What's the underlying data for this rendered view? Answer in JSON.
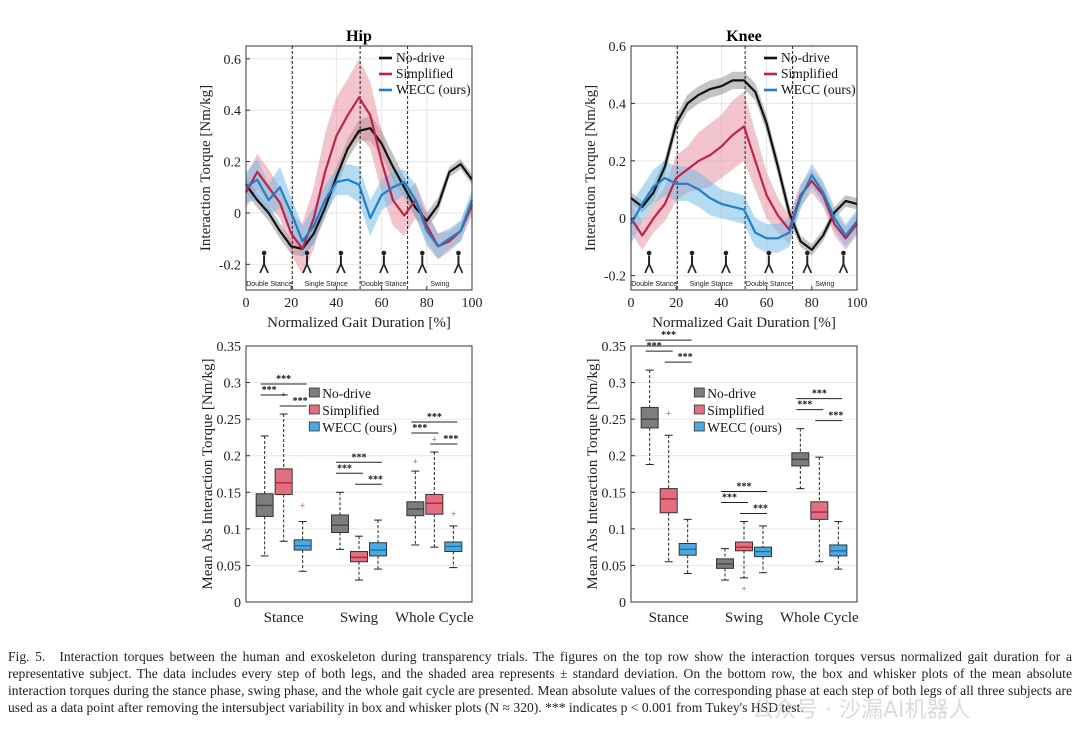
{
  "colors": {
    "no_drive": "#111111",
    "no_drive_band": "#8a8a8a",
    "simplified": "#c0234a",
    "simplified_band": "#e58a9c",
    "wecc": "#1f80c6",
    "wecc_band": "#6cb8e6",
    "box_gray": "#7d7d7d",
    "box_pink": "#e0707f",
    "box_blue": "#4aa9df"
  },
  "chart_data": [
    {
      "type": "line",
      "title": "Hip",
      "xlabel": "Normalized Gait Duration [%]",
      "ylabel": "Interaction Torque [Nm/kg]",
      "xlim": [
        0,
        100
      ],
      "ylim": [
        -0.3,
        0.65
      ],
      "xticks": [
        "0",
        "20",
        "40",
        "60",
        "80",
        "100"
      ],
      "yticks": [
        "-0.2",
        "0",
        "0.2",
        "0.4",
        "0.6"
      ],
      "grid": true,
      "legend_position": "top-right",
      "phase_lines": [
        20.5,
        50.5,
        71.5
      ],
      "phase_labels": [
        "Double Stance",
        "Single Stance",
        "Double Stance",
        "Swing"
      ],
      "x": [
        0,
        5,
        10,
        15,
        20,
        25,
        30,
        35,
        40,
        45,
        50,
        55,
        60,
        65,
        70,
        75,
        80,
        85,
        90,
        95,
        100
      ],
      "series": [
        {
          "name": "No-drive",
          "values": [
            0.11,
            0.05,
            0.0,
            -0.07,
            -0.13,
            -0.14,
            -0.08,
            0.02,
            0.14,
            0.25,
            0.32,
            0.33,
            0.27,
            0.18,
            0.1,
            0.02,
            -0.03,
            0.03,
            0.16,
            0.19,
            0.13
          ],
          "sd": [
            0.03,
            0.03,
            0.03,
            0.03,
            0.03,
            0.03,
            0.04,
            0.04,
            0.04,
            0.04,
            0.04,
            0.05,
            0.05,
            0.05,
            0.04,
            0.04,
            0.03,
            0.03,
            0.02,
            0.02,
            0.02
          ]
        },
        {
          "name": "Simplified",
          "values": [
            0.08,
            0.16,
            0.1,
            0.04,
            -0.08,
            -0.14,
            -0.02,
            0.16,
            0.3,
            0.38,
            0.45,
            0.38,
            0.2,
            0.05,
            -0.01,
            0.05,
            -0.05,
            -0.13,
            -0.11,
            -0.07,
            0.03
          ],
          "sd": [
            0.06,
            0.07,
            0.07,
            0.06,
            0.08,
            0.1,
            0.12,
            0.15,
            0.15,
            0.14,
            0.15,
            0.13,
            0.12,
            0.1,
            0.08,
            0.07,
            0.06,
            0.05,
            0.04,
            0.04,
            0.04
          ]
        },
        {
          "name": "WECC (ours)",
          "values": [
            0.1,
            0.13,
            0.05,
            0.1,
            0.0,
            -0.11,
            -0.05,
            0.05,
            0.12,
            0.13,
            0.11,
            -0.02,
            0.07,
            0.1,
            0.12,
            0.05,
            -0.07,
            -0.13,
            -0.1,
            -0.07,
            0.05
          ],
          "sd": [
            0.06,
            0.08,
            0.06,
            0.08,
            0.06,
            0.06,
            0.07,
            0.06,
            0.05,
            0.06,
            0.07,
            0.07,
            0.06,
            0.06,
            0.05,
            0.06,
            0.06,
            0.05,
            0.04,
            0.04,
            0.04
          ]
        }
      ]
    },
    {
      "type": "line",
      "title": "Knee",
      "xlabel": "Normalized Gait Duration [%]",
      "ylabel": "Interaction Torque [Nm/kg]",
      "xlim": [
        0,
        100
      ],
      "ylim": [
        -0.25,
        0.6
      ],
      "xticks": [
        "0",
        "20",
        "40",
        "60",
        "80",
        "100"
      ],
      "yticks": [
        "-0.2",
        "0",
        "0.2",
        "0.4",
        "0.6"
      ],
      "grid": true,
      "legend_position": "top-right",
      "phase_lines": [
        20.5,
        50.5,
        71.5
      ],
      "phase_labels": [
        "Double Stance",
        "Single Stance",
        "Double Stance",
        "Swing"
      ],
      "x": [
        0,
        5,
        10,
        15,
        20,
        25,
        30,
        35,
        40,
        45,
        50,
        55,
        60,
        65,
        70,
        75,
        80,
        85,
        90,
        95,
        100
      ],
      "series": [
        {
          "name": "No-drive",
          "values": [
            0.07,
            0.04,
            0.09,
            0.18,
            0.33,
            0.4,
            0.43,
            0.45,
            0.46,
            0.48,
            0.48,
            0.44,
            0.33,
            0.18,
            0.02,
            -0.08,
            -0.11,
            -0.06,
            0.02,
            0.06,
            0.05
          ],
          "sd": [
            0.02,
            0.02,
            0.03,
            0.03,
            0.03,
            0.03,
            0.03,
            0.03,
            0.03,
            0.03,
            0.03,
            0.03,
            0.03,
            0.03,
            0.03,
            0.02,
            0.02,
            0.02,
            0.02,
            0.02,
            0.02
          ]
        },
        {
          "name": "Simplified",
          "values": [
            0.0,
            -0.06,
            0.0,
            0.05,
            0.14,
            0.17,
            0.2,
            0.22,
            0.25,
            0.29,
            0.32,
            0.2,
            0.08,
            0.01,
            -0.04,
            0.08,
            0.13,
            0.08,
            -0.02,
            -0.07,
            -0.02
          ],
          "sd": [
            0.05,
            0.05,
            0.05,
            0.06,
            0.08,
            0.08,
            0.1,
            0.11,
            0.11,
            0.12,
            0.12,
            0.1,
            0.08,
            0.06,
            0.05,
            0.04,
            0.04,
            0.04,
            0.04,
            0.04,
            0.04
          ]
        },
        {
          "name": "WECC (ours)",
          "values": [
            -0.02,
            0.05,
            0.11,
            0.14,
            0.12,
            0.12,
            0.1,
            0.07,
            0.05,
            0.04,
            0.03,
            -0.05,
            -0.07,
            -0.07,
            -0.05,
            0.07,
            0.15,
            0.09,
            0.0,
            -0.06,
            -0.01
          ],
          "sd": [
            0.07,
            0.06,
            0.06,
            0.06,
            0.06,
            0.06,
            0.06,
            0.06,
            0.05,
            0.05,
            0.05,
            0.05,
            0.05,
            0.05,
            0.05,
            0.04,
            0.04,
            0.04,
            0.04,
            0.04,
            0.04
          ]
        }
      ]
    },
    {
      "type": "box",
      "title": "",
      "ylabel": "Mean Abs Interaction Torque [Nm/kg]",
      "ylim": [
        0,
        0.35
      ],
      "yticks": [
        "0",
        "0.05",
        "0.1",
        "0.15",
        "0.2",
        "0.25",
        "0.3",
        "0.35"
      ],
      "categories": [
        "Stance",
        "Swing",
        "Whole Cycle"
      ],
      "legend_position": "top-right",
      "significance": "***",
      "series": [
        {
          "name": "No-drive",
          "boxes": [
            {
              "min": 0.063,
              "q1": 0.117,
              "median": 0.132,
              "q3": 0.148,
              "max": 0.227,
              "outliers": []
            },
            {
              "min": 0.072,
              "q1": 0.095,
              "median": 0.105,
              "q3": 0.119,
              "max": 0.15,
              "outliers": []
            },
            {
              "min": 0.078,
              "q1": 0.118,
              "median": 0.127,
              "q3": 0.137,
              "max": 0.179,
              "outliers": [
                0.192
              ]
            }
          ]
        },
        {
          "name": "Simplified",
          "boxes": [
            {
              "min": 0.083,
              "q1": 0.147,
              "median": 0.163,
              "q3": 0.182,
              "max": 0.257,
              "outliers": [
                0.284
              ]
            },
            {
              "min": 0.03,
              "q1": 0.055,
              "median": 0.061,
              "q3": 0.069,
              "max": 0.09,
              "outliers": []
            },
            {
              "min": 0.075,
              "q1": 0.12,
              "median": 0.135,
              "q3": 0.147,
              "max": 0.205,
              "outliers": [
                0.222
              ]
            }
          ]
        },
        {
          "name": "WECC (ours)",
          "boxes": [
            {
              "min": 0.042,
              "q1": 0.071,
              "median": 0.077,
              "q3": 0.085,
              "max": 0.11,
              "outliers": [
                0.132
              ]
            },
            {
              "min": 0.045,
              "q1": 0.063,
              "median": 0.071,
              "q3": 0.081,
              "max": 0.112,
              "outliers": []
            },
            {
              "min": 0.047,
              "q1": 0.069,
              "median": 0.076,
              "q3": 0.082,
              "max": 0.104,
              "outliers": [
                0.12
              ]
            }
          ]
        }
      ]
    },
    {
      "type": "box",
      "title": "",
      "ylabel": "Mean Abs Interaction Torque [Nm/kg]",
      "ylim": [
        0,
        0.35
      ],
      "yticks": [
        "0",
        "0.05",
        "0.1",
        "0.15",
        "0.2",
        "0.25",
        "0.3",
        "0.35"
      ],
      "categories": [
        "Stance",
        "Swing",
        "Whole Cycle"
      ],
      "legend_position": "top-right",
      "significance": "***",
      "series": [
        {
          "name": "No-drive",
          "boxes": [
            {
              "min": 0.188,
              "q1": 0.238,
              "median": 0.25,
              "q3": 0.266,
              "max": 0.317,
              "outliers": []
            },
            {
              "min": 0.03,
              "q1": 0.046,
              "median": 0.052,
              "q3": 0.059,
              "max": 0.073,
              "outliers": []
            },
            {
              "min": 0.155,
              "q1": 0.186,
              "median": 0.195,
              "q3": 0.204,
              "max": 0.237,
              "outliers": []
            }
          ]
        },
        {
          "name": "Simplified",
          "boxes": [
            {
              "min": 0.055,
              "q1": 0.122,
              "median": 0.141,
              "q3": 0.155,
              "max": 0.228,
              "outliers": [
                0.258
              ]
            },
            {
              "min": 0.033,
              "q1": 0.07,
              "median": 0.075,
              "q3": 0.082,
              "max": 0.11,
              "outliers": [
                0.018
              ]
            },
            {
              "min": 0.055,
              "q1": 0.113,
              "median": 0.123,
              "q3": 0.137,
              "max": 0.198,
              "outliers": []
            }
          ]
        },
        {
          "name": "WECC (ours)",
          "boxes": [
            {
              "min": 0.039,
              "q1": 0.064,
              "median": 0.072,
              "q3": 0.08,
              "max": 0.113,
              "outliers": []
            },
            {
              "min": 0.04,
              "q1": 0.062,
              "median": 0.069,
              "q3": 0.075,
              "max": 0.104,
              "outliers": []
            },
            {
              "min": 0.045,
              "q1": 0.063,
              "median": 0.07,
              "q3": 0.078,
              "max": 0.11,
              "outliers": []
            }
          ]
        }
      ]
    }
  ],
  "caption": {
    "label": "Fig. 5.",
    "text": "Interaction torques between the human and exoskeleton during transparency trials. The figures on the top row show the interaction torques versus normalized gait duration for a representative subject. The data includes every step of both legs, and the shaded area represents ± standard deviation. On the bottom row, the box and whisker plots of the mean absolute interaction torques during the stance phase, swing phase, and the whole gait cycle are presented. Mean absolute values of the corresponding phase at each step of both legs of all three subjects are used as a data point after removing the intersubject variability in box and whisker plots (N ≈ 320). *** indicates p < 0.001 from Tukey's HSD test."
  },
  "watermark": "公众号 · 沙漏AI机器人"
}
